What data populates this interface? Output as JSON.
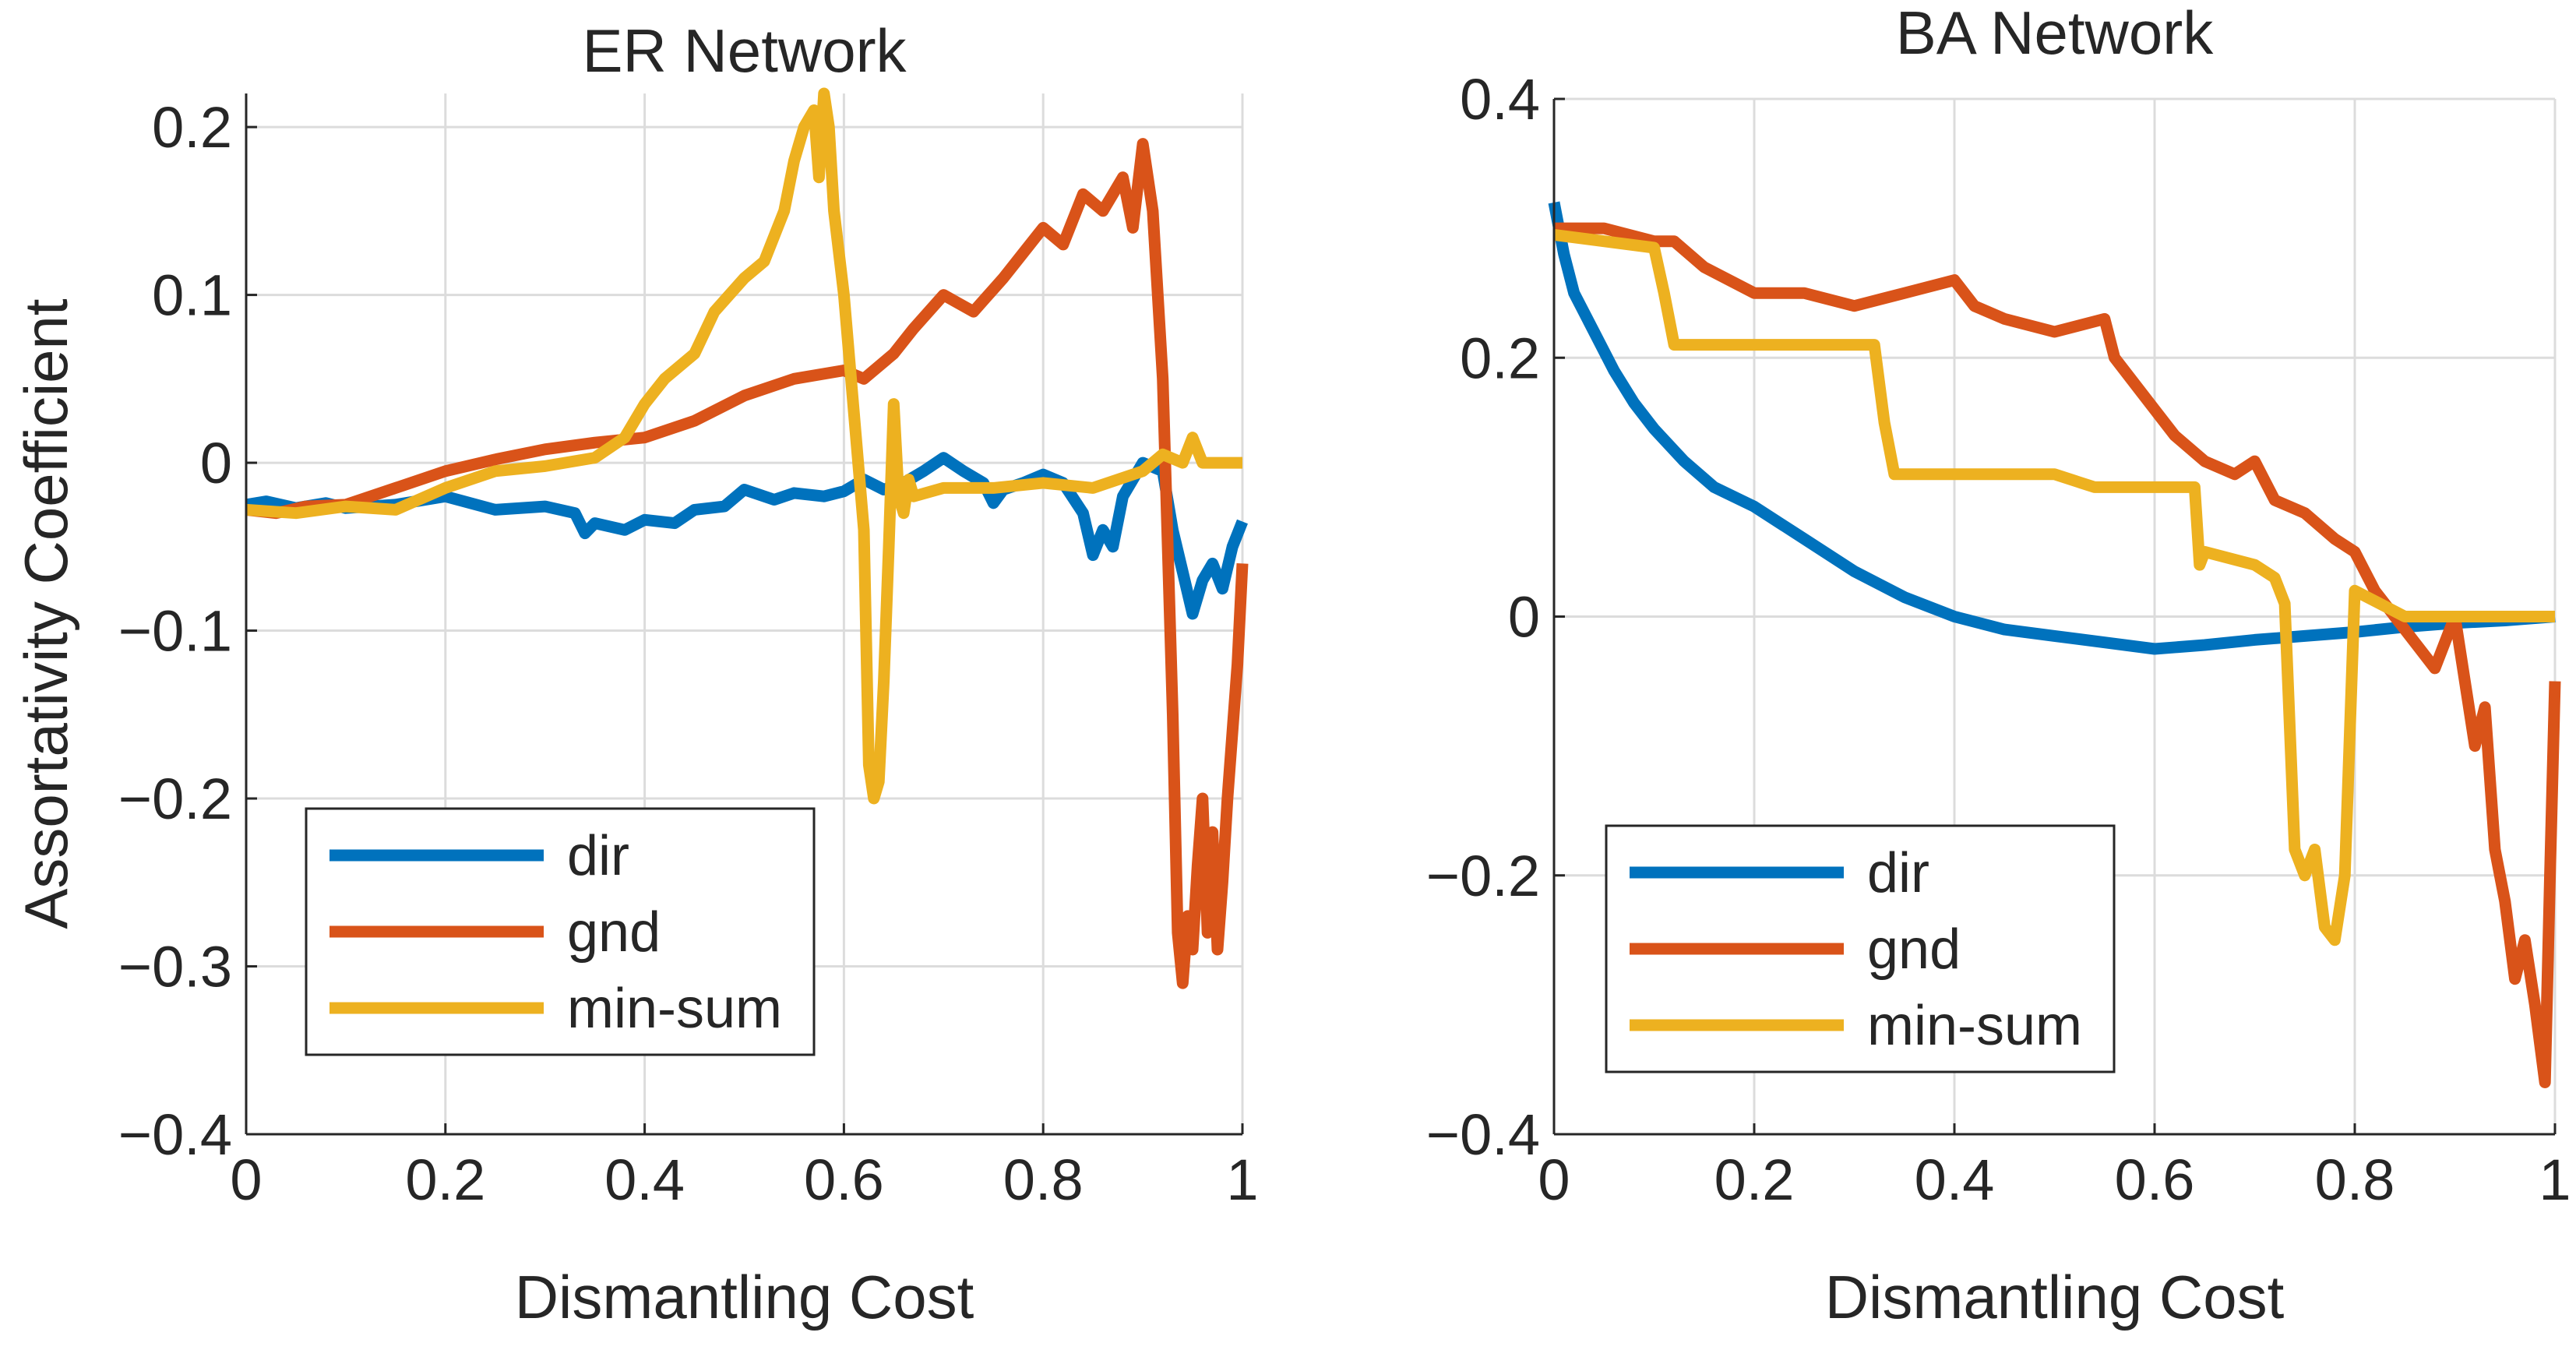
{
  "figure": {
    "ylabel": "Assortativity Coefficient"
  },
  "colors": {
    "dir": "#0072bd",
    "gnd": "#d95319",
    "min-sum": "#edb120",
    "grid": "#dcdcdc",
    "axis": "#262626"
  },
  "chart_data": [
    {
      "type": "line",
      "title": "ER Network",
      "xlabel": "Dismantling Cost",
      "ylabel": "Assortativity Coefficient",
      "xlim": [
        0,
        1
      ],
      "ylim": [
        -0.4,
        0.22
      ],
      "xticks": [
        0,
        0.2,
        0.4,
        0.6,
        0.8,
        1
      ],
      "xtick_labels": [
        "0",
        "0.2",
        "0.4",
        "0.6",
        "0.8",
        "1"
      ],
      "yticks": [
        -0.4,
        -0.3,
        -0.2,
        -0.1,
        0,
        0.1,
        0.2
      ],
      "ytick_labels": [
        "−0.4",
        "−0.3",
        "−0.2",
        "−0.1",
        "0",
        "0.1",
        "0.2"
      ],
      "grid": true,
      "legend_position": "bottom-left",
      "series": [
        {
          "name": "dir",
          "color": "#0072bd",
          "x": [
            0,
            0.02,
            0.05,
            0.08,
            0.1,
            0.15,
            0.2,
            0.25,
            0.3,
            0.33,
            0.34,
            0.35,
            0.38,
            0.4,
            0.43,
            0.45,
            0.48,
            0.5,
            0.53,
            0.55,
            0.58,
            0.6,
            0.62,
            0.64,
            0.66,
            0.68,
            0.7,
            0.72,
            0.74,
            0.75,
            0.76,
            0.78,
            0.8,
            0.82,
            0.84,
            0.85,
            0.86,
            0.87,
            0.88,
            0.9,
            0.92,
            0.93,
            0.94,
            0.95,
            0.96,
            0.97,
            0.98,
            0.99,
            1.0
          ],
          "y": [
            -0.025,
            -0.023,
            -0.027,
            -0.024,
            -0.027,
            -0.025,
            -0.02,
            -0.028,
            -0.026,
            -0.03,
            -0.042,
            -0.036,
            -0.04,
            -0.034,
            -0.036,
            -0.028,
            -0.026,
            -0.016,
            -0.022,
            -0.018,
            -0.02,
            -0.017,
            -0.01,
            -0.016,
            -0.012,
            -0.005,
            0.003,
            -0.005,
            -0.012,
            -0.024,
            -0.016,
            -0.012,
            -0.007,
            -0.012,
            -0.03,
            -0.055,
            -0.04,
            -0.05,
            -0.02,
            0.0,
            -0.005,
            -0.04,
            -0.065,
            -0.09,
            -0.07,
            -0.06,
            -0.075,
            -0.05,
            -0.035
          ]
        },
        {
          "name": "gnd",
          "color": "#d95319",
          "x": [
            0,
            0.03,
            0.06,
            0.1,
            0.15,
            0.2,
            0.25,
            0.3,
            0.35,
            0.4,
            0.45,
            0.5,
            0.55,
            0.6,
            0.62,
            0.65,
            0.67,
            0.7,
            0.73,
            0.76,
            0.78,
            0.8,
            0.82,
            0.84,
            0.86,
            0.88,
            0.89,
            0.9,
            0.91,
            0.92,
            0.925,
            0.93,
            0.935,
            0.94,
            0.945,
            0.95,
            0.955,
            0.96,
            0.965,
            0.97,
            0.975,
            0.98,
            0.985,
            0.99,
            0.995,
            1.0
          ],
          "y": [
            -0.028,
            -0.03,
            -0.026,
            -0.025,
            -0.015,
            -0.005,
            0.002,
            0.008,
            0.012,
            0.015,
            0.025,
            0.04,
            0.05,
            0.055,
            0.05,
            0.065,
            0.08,
            0.1,
            0.09,
            0.11,
            0.125,
            0.14,
            0.13,
            0.16,
            0.15,
            0.17,
            0.14,
            0.19,
            0.15,
            0.05,
            -0.05,
            -0.15,
            -0.28,
            -0.31,
            -0.27,
            -0.29,
            -0.24,
            -0.2,
            -0.28,
            -0.22,
            -0.29,
            -0.25,
            -0.2,
            -0.16,
            -0.12,
            -0.06
          ]
        },
        {
          "name": "min-sum",
          "color": "#edb120",
          "x": [
            0,
            0.05,
            0.1,
            0.15,
            0.2,
            0.25,
            0.3,
            0.35,
            0.38,
            0.4,
            0.42,
            0.45,
            0.47,
            0.5,
            0.52,
            0.54,
            0.55,
            0.56,
            0.57,
            0.575,
            0.58,
            0.585,
            0.59,
            0.6,
            0.61,
            0.62,
            0.625,
            0.63,
            0.635,
            0.64,
            0.645,
            0.65,
            0.655,
            0.66,
            0.665,
            0.67,
            0.7,
            0.75,
            0.8,
            0.85,
            0.9,
            0.92,
            0.94,
            0.95,
            0.96,
            1.0
          ],
          "y": [
            -0.028,
            -0.03,
            -0.026,
            -0.028,
            -0.015,
            -0.005,
            -0.002,
            0.003,
            0.015,
            0.035,
            0.05,
            0.065,
            0.09,
            0.11,
            0.12,
            0.15,
            0.18,
            0.2,
            0.21,
            0.17,
            0.22,
            0.2,
            0.15,
            0.1,
            0.03,
            -0.04,
            -0.18,
            -0.2,
            -0.19,
            -0.13,
            -0.05,
            0.035,
            -0.02,
            -0.03,
            -0.01,
            -0.02,
            -0.015,
            -0.015,
            -0.012,
            -0.015,
            -0.005,
            0.005,
            0.0,
            0.015,
            0.0,
            0.0
          ]
        }
      ]
    },
    {
      "type": "line",
      "title": "BA Network",
      "xlabel": "Dismantling Cost",
      "ylabel": "",
      "xlim": [
        0,
        1
      ],
      "ylim": [
        -0.4,
        0.4
      ],
      "xticks": [
        0,
        0.2,
        0.4,
        0.6,
        0.8,
        1
      ],
      "xtick_labels": [
        "0",
        "0.2",
        "0.4",
        "0.6",
        "0.8",
        "1"
      ],
      "yticks": [
        -0.4,
        -0.2,
        0,
        0.2,
        0.4
      ],
      "ytick_labels": [
        "−0.4",
        "−0.2",
        "0",
        "0.2",
        "0.4"
      ],
      "grid": true,
      "legend_position": "bottom-left",
      "series": [
        {
          "name": "dir",
          "color": "#0072bd",
          "x": [
            0,
            0.01,
            0.02,
            0.04,
            0.06,
            0.08,
            0.1,
            0.13,
            0.16,
            0.2,
            0.25,
            0.3,
            0.35,
            0.4,
            0.45,
            0.5,
            0.55,
            0.6,
            0.65,
            0.7,
            0.75,
            0.8,
            0.85,
            0.9,
            0.95,
            1.0
          ],
          "y": [
            0.32,
            0.28,
            0.25,
            0.22,
            0.19,
            0.165,
            0.145,
            0.12,
            0.1,
            0.085,
            0.06,
            0.035,
            0.015,
            0.0,
            -0.01,
            -0.015,
            -0.02,
            -0.025,
            -0.022,
            -0.018,
            -0.015,
            -0.012,
            -0.008,
            -0.005,
            -0.003,
            0.0
          ]
        },
        {
          "name": "gnd",
          "color": "#d95319",
          "x": [
            0,
            0.05,
            0.1,
            0.12,
            0.15,
            0.2,
            0.25,
            0.3,
            0.35,
            0.4,
            0.42,
            0.45,
            0.5,
            0.55,
            0.56,
            0.6,
            0.62,
            0.65,
            0.68,
            0.7,
            0.72,
            0.75,
            0.78,
            0.8,
            0.82,
            0.84,
            0.86,
            0.88,
            0.9,
            0.92,
            0.93,
            0.94,
            0.95,
            0.96,
            0.97,
            0.98,
            0.985,
            0.99,
            0.995,
            1.0
          ],
          "y": [
            0.3,
            0.3,
            0.29,
            0.29,
            0.27,
            0.25,
            0.25,
            0.24,
            0.25,
            0.26,
            0.24,
            0.23,
            0.22,
            0.23,
            0.2,
            0.16,
            0.14,
            0.12,
            0.11,
            0.12,
            0.09,
            0.08,
            0.06,
            0.05,
            0.02,
            0.0,
            -0.02,
            -0.04,
            0.0,
            -0.1,
            -0.07,
            -0.18,
            -0.22,
            -0.28,
            -0.25,
            -0.3,
            -0.33,
            -0.36,
            -0.2,
            -0.05
          ]
        },
        {
          "name": "min-sum",
          "color": "#edb120",
          "x": [
            0,
            0.1,
            0.11,
            0.12,
            0.2,
            0.3,
            0.32,
            0.33,
            0.34,
            0.4,
            0.45,
            0.5,
            0.54,
            0.55,
            0.64,
            0.645,
            0.65,
            0.7,
            0.72,
            0.73,
            0.74,
            0.75,
            0.76,
            0.77,
            0.78,
            0.79,
            0.8,
            0.85,
            0.9,
            0.95,
            1.0
          ],
          "y": [
            0.295,
            0.285,
            0.25,
            0.21,
            0.21,
            0.21,
            0.21,
            0.15,
            0.11,
            0.11,
            0.11,
            0.11,
            0.1,
            0.1,
            0.1,
            0.04,
            0.05,
            0.04,
            0.03,
            0.01,
            -0.18,
            -0.2,
            -0.18,
            -0.24,
            -0.25,
            -0.2,
            0.02,
            0.0,
            0.0,
            0.0,
            0.0
          ]
        }
      ]
    }
  ]
}
